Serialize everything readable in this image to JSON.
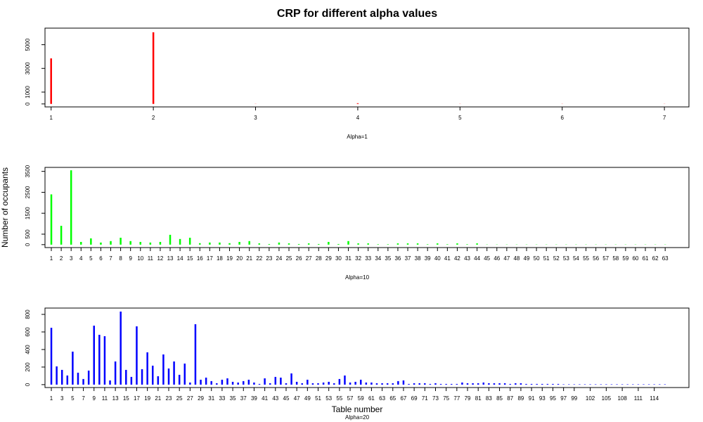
{
  "title": "CRP for different alpha values",
  "xlabel": "Table number",
  "ylabel": "Number of occupants",
  "chart_data": [
    {
      "type": "bar",
      "xlabel": "Alpha=1",
      "color": "#ff0000",
      "x": [
        1,
        2,
        3,
        4,
        5,
        6,
        7
      ],
      "values": [
        3850,
        6050,
        10,
        60,
        10,
        10,
        10
      ],
      "xlim": [
        0.94,
        7.24
      ],
      "xticks": [
        1,
        2,
        3,
        4,
        5,
        6,
        7
      ],
      "ylim": [
        -250,
        6400
      ],
      "yticks": [
        0,
        1000,
        3000,
        5000
      ]
    },
    {
      "type": "bar",
      "xlabel": "Alpha=10",
      "color": "#00ff00",
      "x": [
        1,
        2,
        3,
        4,
        5,
        6,
        7,
        8,
        9,
        10,
        11,
        12,
        13,
        14,
        15,
        16,
        17,
        18,
        19,
        20,
        21,
        22,
        23,
        24,
        25,
        26,
        27,
        28,
        29,
        30,
        31,
        32,
        33,
        34,
        35,
        36,
        37,
        38,
        39,
        40,
        41,
        42,
        43,
        44,
        45,
        46,
        47,
        48,
        49,
        50,
        51,
        52,
        53,
        54,
        55,
        56,
        57,
        58,
        59,
        60,
        61,
        62,
        63
      ],
      "values": [
        2400,
        900,
        3550,
        130,
        300,
        100,
        170,
        330,
        170,
        130,
        100,
        130,
        470,
        270,
        330,
        70,
        100,
        100,
        70,
        130,
        170,
        60,
        30,
        100,
        60,
        30,
        60,
        30,
        130,
        30,
        170,
        60,
        60,
        20,
        20,
        60,
        60,
        60,
        20,
        60,
        20,
        60,
        20,
        60,
        10,
        10,
        10,
        10,
        10,
        10,
        10,
        10,
        10,
        10,
        10,
        10,
        10,
        10,
        10,
        10,
        10,
        10,
        10
      ],
      "xlim": [
        0.36,
        65.4
      ],
      "xticks": [
        1,
        2,
        3,
        4,
        5,
        6,
        7,
        8,
        9,
        10,
        11,
        12,
        13,
        14,
        15,
        16,
        17,
        18,
        19,
        20,
        21,
        22,
        23,
        24,
        25,
        26,
        27,
        28,
        29,
        30,
        31,
        32,
        33,
        34,
        35,
        36,
        37,
        38,
        39,
        40,
        41,
        42,
        43,
        44,
        45,
        46,
        47,
        48,
        49,
        50,
        51,
        52,
        53,
        54,
        55,
        56,
        57,
        58,
        59,
        60,
        61,
        62,
        63
      ],
      "ylim": [
        -140,
        3690
      ],
      "yticks": [
        0,
        500,
        1500,
        2500,
        3500
      ]
    },
    {
      "type": "bar",
      "xlabel": "Alpha=20",
      "color": "#0000ff",
      "x": [
        1,
        2,
        3,
        4,
        5,
        6,
        7,
        8,
        9,
        10,
        11,
        12,
        13,
        14,
        15,
        16,
        17,
        18,
        19,
        20,
        21,
        22,
        23,
        24,
        25,
        26,
        27,
        28,
        29,
        30,
        31,
        32,
        33,
        34,
        35,
        36,
        37,
        38,
        39,
        40,
        41,
        42,
        43,
        44,
        45,
        46,
        47,
        48,
        49,
        50,
        51,
        52,
        53,
        54,
        55,
        56,
        57,
        58,
        59,
        60,
        61,
        62,
        63,
        64,
        65,
        66,
        67,
        68,
        69,
        70,
        71,
        72,
        73,
        74,
        75,
        76,
        77,
        78,
        79,
        80,
        81,
        82,
        83,
        84,
        85,
        86,
        87,
        88,
        89,
        90,
        91,
        92,
        93,
        94,
        95,
        96,
        97,
        98,
        99,
        100,
        101,
        102,
        103,
        104,
        105,
        106,
        107,
        108,
        109,
        110,
        111,
        112,
        113,
        114,
        115,
        116
      ],
      "values": [
        648,
        208,
        168,
        104,
        376,
        136,
        64,
        160,
        672,
        568,
        552,
        48,
        264,
        832,
        168,
        88,
        664,
        176,
        368,
        216,
        96,
        344,
        184,
        264,
        112,
        240,
        24,
        688,
        56,
        80,
        40,
        16,
        56,
        72,
        32,
        24,
        40,
        56,
        24,
        8,
        72,
        16,
        88,
        80,
        16,
        128,
        32,
        16,
        56,
        16,
        16,
        24,
        32,
        16,
        64,
        104,
        24,
        32,
        56,
        24,
        24,
        16,
        16,
        16,
        16,
        40,
        48,
        8,
        16,
        16,
        16,
        8,
        16,
        8,
        8,
        8,
        8,
        24,
        16,
        16,
        16,
        24,
        16,
        16,
        16,
        16,
        8,
        16,
        16,
        8,
        8,
        8,
        8,
        8,
        8,
        8,
        4,
        4,
        4,
        4,
        4,
        4,
        4,
        4,
        4,
        4,
        4,
        4,
        4,
        4,
        4,
        4,
        4,
        4,
        4,
        4
      ],
      "xlim": [
        -0.19,
        120.5
      ],
      "xticks": [
        1,
        3,
        5,
        7,
        9,
        11,
        13,
        15,
        17,
        19,
        21,
        23,
        25,
        27,
        29,
        31,
        33,
        35,
        37,
        39,
        41,
        43,
        45,
        47,
        49,
        51,
        53,
        55,
        57,
        59,
        61,
        63,
        65,
        67,
        69,
        71,
        73,
        75,
        77,
        79,
        81,
        83,
        85,
        87,
        89,
        91,
        93,
        95,
        97,
        99,
        102,
        105,
        108,
        111,
        114
      ],
      "ylim": [
        -33,
        872
      ],
      "yticks": [
        0,
        200,
        400,
        600,
        800
      ]
    }
  ]
}
